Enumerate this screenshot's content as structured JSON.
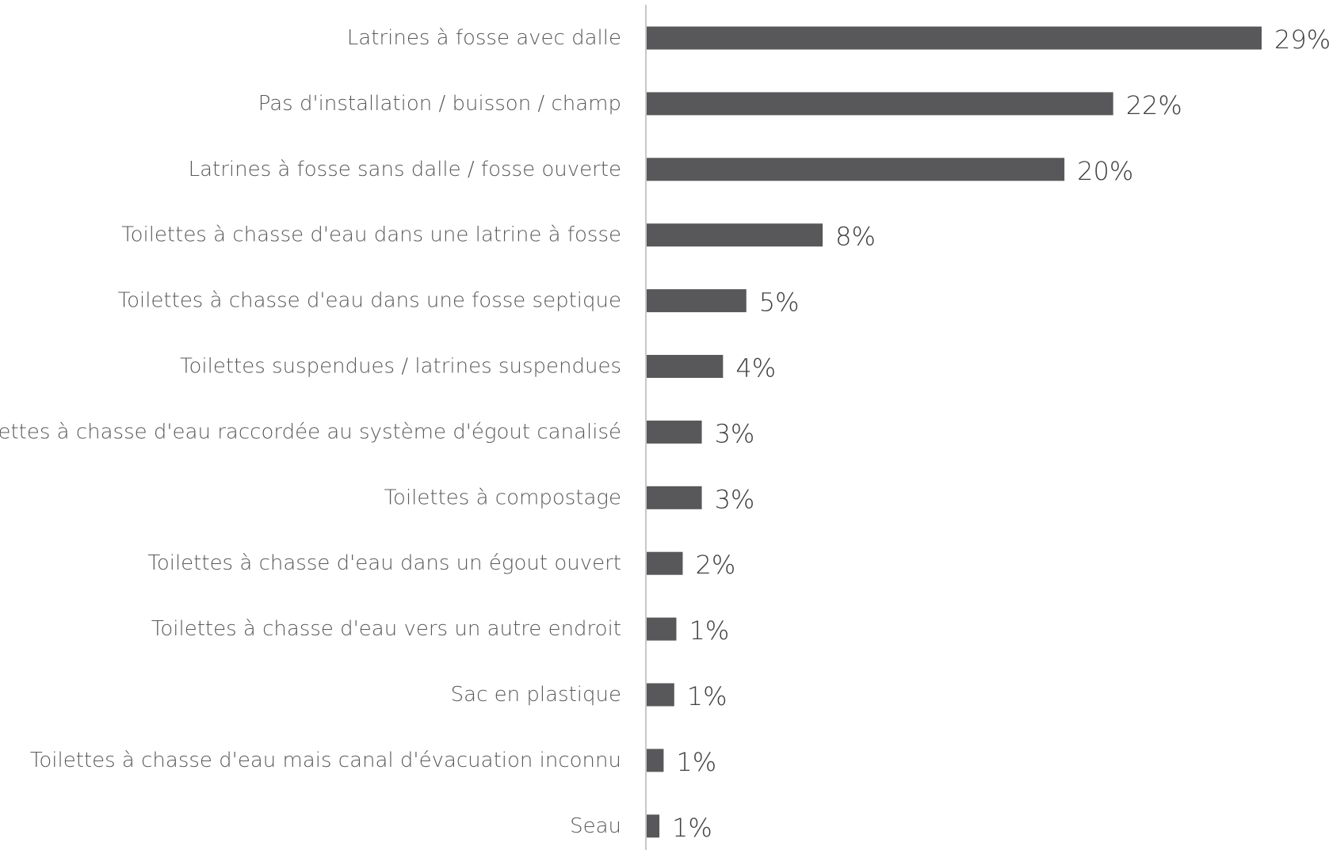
{
  "chart_data": {
    "type": "bar",
    "orientation": "horizontal",
    "title": "",
    "xlabel": "",
    "ylabel": "",
    "value_suffix": "%",
    "grid": false,
    "legend": "none",
    "xlim": [
      0,
      29
    ],
    "bar_color": "#58585a",
    "axis_color": "#c8c8c8",
    "categories": [
      "Latrines à fosse avec dalle",
      "Pas d'installation / buisson / champ",
      "Latrines à fosse sans dalle / fosse ouverte",
      "Toilettes à chasse d'eau dans une latrine à fosse",
      "Toilettes à chasse d'eau dans une fosse septique",
      "Toilettes suspendues / latrines suspendues",
      "Toilettes à chasse d'eau raccordée au système d'égout canalisé",
      "Toilettes à compostage",
      "Toilettes à chasse d'eau dans un égout ouvert",
      "Toilettes à chasse d'eau vers un autre endroit",
      "Sac en plastique",
      "Toilettes à chasse d'eau mais canal d'évacuation inconnu",
      "Seau"
    ],
    "values": [
      29,
      22,
      20,
      8,
      5,
      4,
      3,
      3,
      2,
      1,
      1,
      1,
      1
    ],
    "bar_values": [
      29.0,
      22.0,
      19.7,
      8.3,
      4.7,
      3.6,
      2.6,
      2.6,
      1.7,
      1.4,
      1.3,
      0.8,
      0.6
    ],
    "value_labels": [
      "29%",
      "22%",
      "20%",
      "8%",
      "5%",
      "4%",
      "3%",
      "3%",
      "2%",
      "1%",
      "1%",
      "1%",
      "1%"
    ]
  }
}
